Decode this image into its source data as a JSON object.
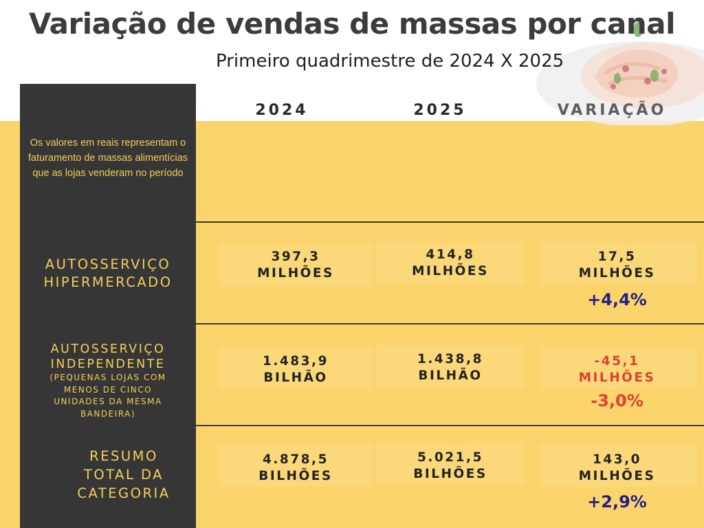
{
  "header": {
    "title": "Variação de vendas  de massas por canal",
    "subtitle": "Primeiro quadrimestre de 2024 X 2025"
  },
  "note": "Os valores em reais representam o  faturamento de massas alimentícias que as lojas venderam no período",
  "columns": [
    "2024",
    "2025",
    "VARIAÇÃO"
  ],
  "rows": [
    {
      "label": [
        "AUTOSSERVIÇO",
        "HIPERMERCADO"
      ],
      "sublabel": [],
      "v2024": [
        "397,3",
        "MILHÕES"
      ],
      "v2025": [
        "414,8",
        "MILHÕES"
      ],
      "variation": [
        "17,5",
        "MILHÕES"
      ],
      "percent": "+4,4%",
      "trend": "up"
    },
    {
      "label": [
        "AUTOSSERVIÇO",
        "INDEPENDENTE"
      ],
      "sublabel": [
        "(PEQUENAS LOJAS COM",
        "MENOS DE CINCO",
        "UNIDADES DA MESMA",
        "BANDEIRA)"
      ],
      "v2024": [
        "1.483,9",
        "BILHÃO"
      ],
      "v2025": [
        "1.438,8",
        "BILHÃO"
      ],
      "variation": [
        "-45,1",
        "MILHÕES"
      ],
      "percent": "-3,0%",
      "trend": "down"
    },
    {
      "label": [
        "RESUMO",
        "TOTAL DA",
        "CATEGORIA"
      ],
      "sublabel": [],
      "v2024": [
        "4.878,5",
        "BILHÕES"
      ],
      "v2025": [
        "5.021,5",
        "BILHÕES"
      ],
      "variation": [
        "143,0",
        "MILHÕES"
      ],
      "percent": "+2,9%",
      "trend": "up"
    }
  ],
  "colors": {
    "background_yellow": "#fbd56c",
    "sidebar": "#363636",
    "label_gold": "#f3cf57",
    "positive": "#241f86",
    "negative": "#e0402f"
  },
  "icons": [
    "pasta-plate-decoration"
  ]
}
